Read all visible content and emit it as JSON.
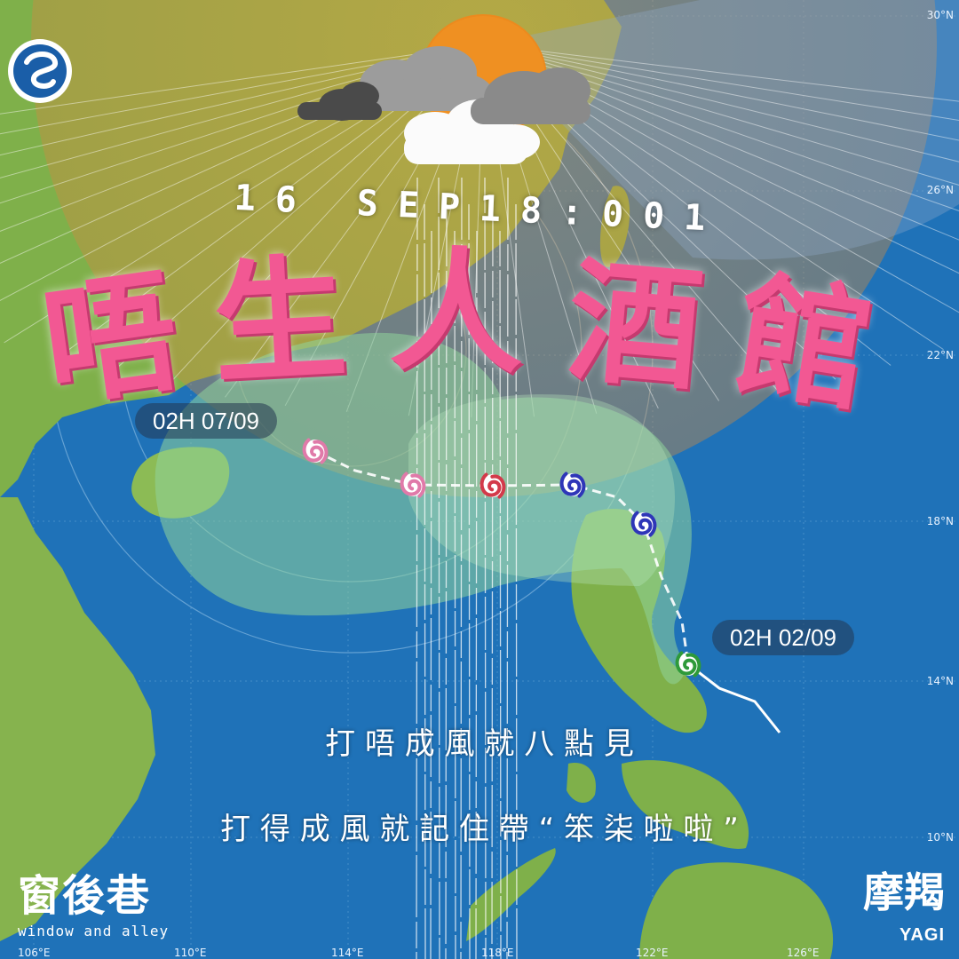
{
  "header": {
    "timestamp": "16 SEP18:001",
    "title_chars": [
      "唔",
      "生",
      "人",
      "酒",
      "館"
    ]
  },
  "map": {
    "latitude_labels": [
      "30°N",
      "26°N",
      "22°N",
      "18°N",
      "14°N",
      "10°N"
    ],
    "longitude_labels": [
      "106°E",
      "110°E",
      "114°E",
      "118°E",
      "122°E",
      "126°E"
    ],
    "forecast_start_label": "02H 02/09",
    "forecast_end_label": "02H 07/09",
    "track_colors": [
      "#2e9a3a",
      "#2e36b8",
      "#2e36b8",
      "#d33a4a",
      "#e07aa9",
      "#e07aa9"
    ],
    "cone_color": "#8fd39a"
  },
  "captions": {
    "line1": "打 唔 成 風 就 八 點 見",
    "line2": "打 得 成 風 就 記 住 帶 “ 笨 柒 啦 啦 ”"
  },
  "brand": {
    "name_cn": "窗後巷",
    "name_en": "window and alley"
  },
  "storm": {
    "name_cn": "摩羯",
    "name_en": "YAGI"
  },
  "icons": {
    "agency_logo": "observatory-logo-icon",
    "weather": "sun-behind-clouds-icon",
    "cyclone": "tropical-cyclone-icon"
  }
}
